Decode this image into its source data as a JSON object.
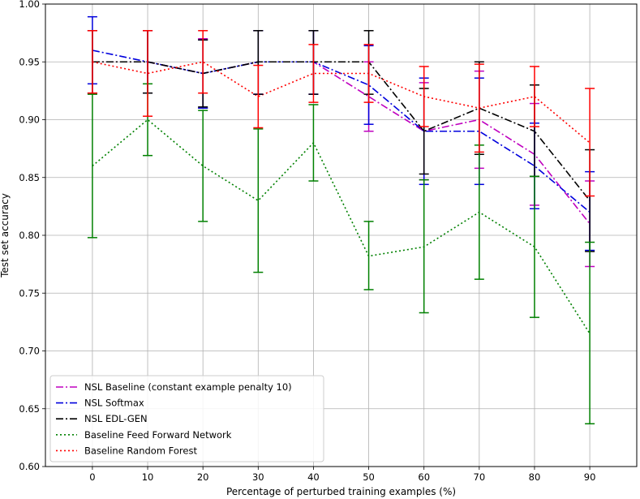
{
  "chart_data": {
    "type": "line",
    "xlabel": "Percentage of perturbed training examples (%)",
    "ylabel": "Test set accuracy",
    "x": [
      0,
      10,
      20,
      30,
      40,
      50,
      60,
      70,
      80,
      90
    ],
    "xticks": [
      "0",
      "10",
      "20",
      "30",
      "40",
      "50",
      "60",
      "70",
      "80",
      "90"
    ],
    "yticks": [
      "0.60",
      "0.65",
      "0.70",
      "0.75",
      "0.80",
      "0.85",
      "0.90",
      "0.95",
      "1.00"
    ],
    "xlim": [
      -8.5,
      98.5
    ],
    "ylim": [
      0.6,
      1.0
    ],
    "grid": true,
    "legend_position": "bottom-left",
    "series": [
      {
        "name": "NSL Baseline (constant example penalty 10)",
        "color": "#bf00bf",
        "dash": "dashdot",
        "values": [
          0.95,
          0.95,
          0.94,
          0.95,
          0.95,
          0.92,
          0.89,
          0.9,
          0.87,
          0.81
        ],
        "err_low": [
          0.923,
          0.923,
          0.91,
          0.922,
          0.922,
          0.89,
          0.848,
          0.858,
          0.826,
          0.773
        ],
        "err_high": [
          0.977,
          0.977,
          0.97,
          0.977,
          0.977,
          0.95,
          0.932,
          0.942,
          0.914,
          0.847
        ]
      },
      {
        "name": "NSL Softmax",
        "color": "#0000dd",
        "dash": "dashdot",
        "values": [
          0.96,
          0.95,
          0.94,
          0.95,
          0.95,
          0.93,
          0.89,
          0.89,
          0.86,
          0.82
        ],
        "err_low": [
          0.931,
          0.923,
          0.91,
          0.922,
          0.922,
          0.896,
          0.844,
          0.844,
          0.823,
          0.787
        ],
        "err_high": [
          0.989,
          0.977,
          0.969,
          0.977,
          0.977,
          0.964,
          0.936,
          0.936,
          0.897,
          0.855
        ]
      },
      {
        "name": "NSL EDL-GEN",
        "color": "#000000",
        "dash": "dashdot",
        "values": [
          0.95,
          0.95,
          0.94,
          0.95,
          0.95,
          0.95,
          0.89,
          0.91,
          0.89,
          0.83
        ],
        "err_low": [
          0.923,
          0.923,
          0.911,
          0.922,
          0.922,
          0.922,
          0.853,
          0.87,
          0.851,
          0.786
        ],
        "err_high": [
          0.977,
          0.977,
          0.969,
          0.977,
          0.977,
          0.977,
          0.927,
          0.95,
          0.93,
          0.874
        ]
      },
      {
        "name": "Baseline Feed Forward Network",
        "color": "#008000",
        "dash": "dotted",
        "values": [
          0.86,
          0.9,
          0.86,
          0.83,
          0.88,
          0.782,
          0.79,
          0.82,
          0.79,
          0.715
        ],
        "err_low": [
          0.798,
          0.869,
          0.812,
          0.768,
          0.847,
          0.753,
          0.733,
          0.762,
          0.729,
          0.637
        ],
        "err_high": [
          0.922,
          0.931,
          0.908,
          0.892,
          0.913,
          0.812,
          0.848,
          0.878,
          0.851,
          0.794
        ]
      },
      {
        "name": "Baseline Random Forest",
        "color": "#ff0000",
        "dash": "dotted",
        "values": [
          0.95,
          0.94,
          0.95,
          0.92,
          0.94,
          0.94,
          0.92,
          0.91,
          0.92,
          0.88
        ],
        "err_low": [
          0.923,
          0.903,
          0.923,
          0.893,
          0.915,
          0.915,
          0.894,
          0.872,
          0.894,
          0.834
        ],
        "err_high": [
          0.977,
          0.977,
          0.977,
          0.947,
          0.965,
          0.965,
          0.946,
          0.948,
          0.946,
          0.927
        ]
      }
    ]
  }
}
